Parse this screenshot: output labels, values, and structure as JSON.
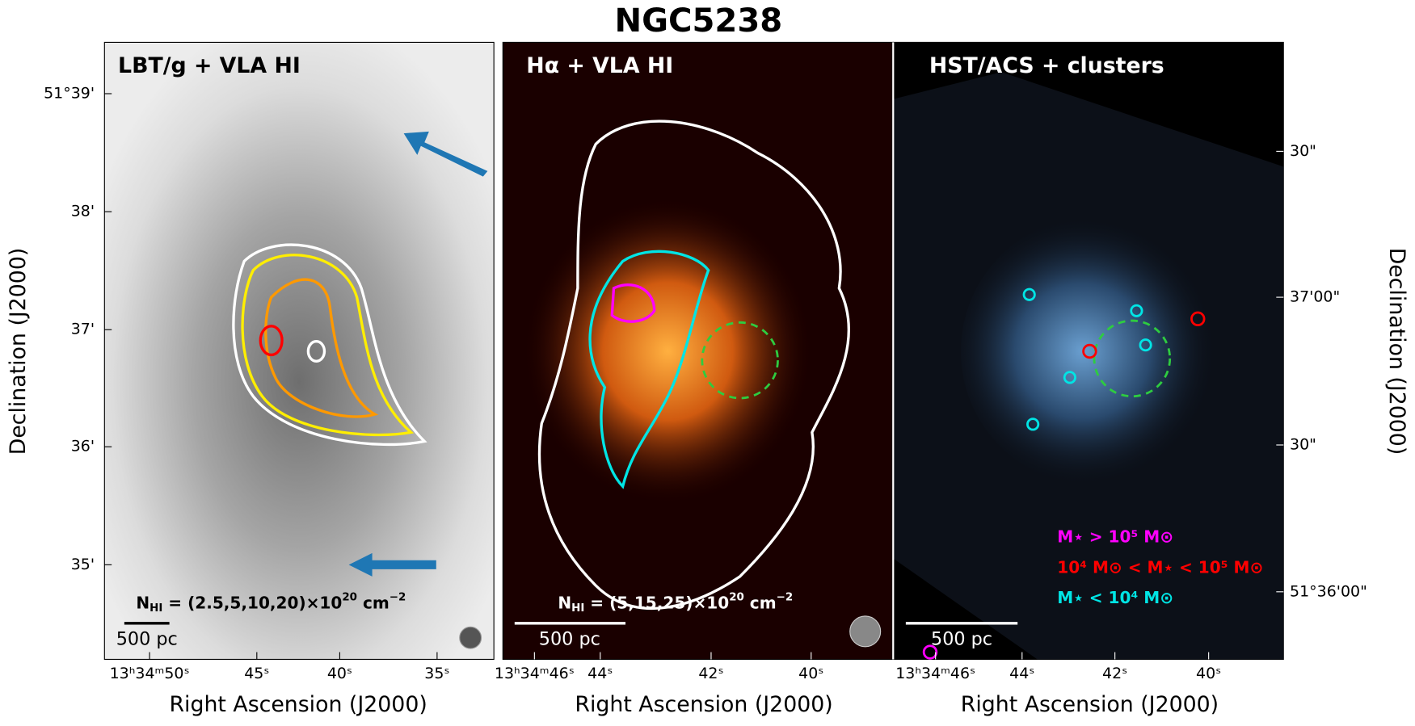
{
  "title": "NGC5238",
  "panels": [
    {
      "label": "LBT/g + VLA HI",
      "x_ticks": [
        "13ʰ34ᵐ50ˢ",
        "45ˢ",
        "40ˢ",
        "35ˢ"
      ],
      "y_ticks": [
        "51°39'",
        "38'",
        "37'",
        "36'",
        "35'"
      ],
      "y_axis_label": "Declination (J2000)",
      "x_axis_label": "Right Ascension (J2000)",
      "column_density": [
        "N",
        "HI",
        " = (2.5,5,10,20)×10",
        "20",
        " cm",
        "−2"
      ],
      "scale_bar": "500 pc"
    },
    {
      "label": "Hα + VLA HI",
      "x_ticks": [
        "13ʰ34ᵐ46ˢ",
        "44ˢ",
        "42ˢ",
        "40ˢ"
      ],
      "x_axis_label": "Right Ascension (J2000)",
      "column_density": [
        "N",
        "HI",
        " = (5,15,25)×10",
        "20",
        " cm",
        "−2"
      ],
      "scale_bar": "500 pc"
    },
    {
      "label": "HST/ACS + clusters",
      "x_ticks": [
        "13ʰ34ᵐ46ˢ",
        "44ˢ",
        "42ˢ",
        "40ˢ"
      ],
      "y_ticks": [
        "30\"",
        "37'00\"",
        "30\"",
        "51°36'00\""
      ],
      "y_axis_label": "Declination (J2000)",
      "x_axis_label": "Right Ascension (J2000)",
      "scale_bar": "500 pc",
      "legend": [
        {
          "name": "M⋆ > 10⁵ M⊙",
          "color": "#ff00ff"
        },
        {
          "name": "10⁴ M⊙ < M⋆ < 10⁵ M⊙",
          "color": "#ff0000"
        },
        {
          "name": "M⋆ < 10⁴ M⊙",
          "color": "#00e5e5"
        }
      ]
    }
  ]
}
